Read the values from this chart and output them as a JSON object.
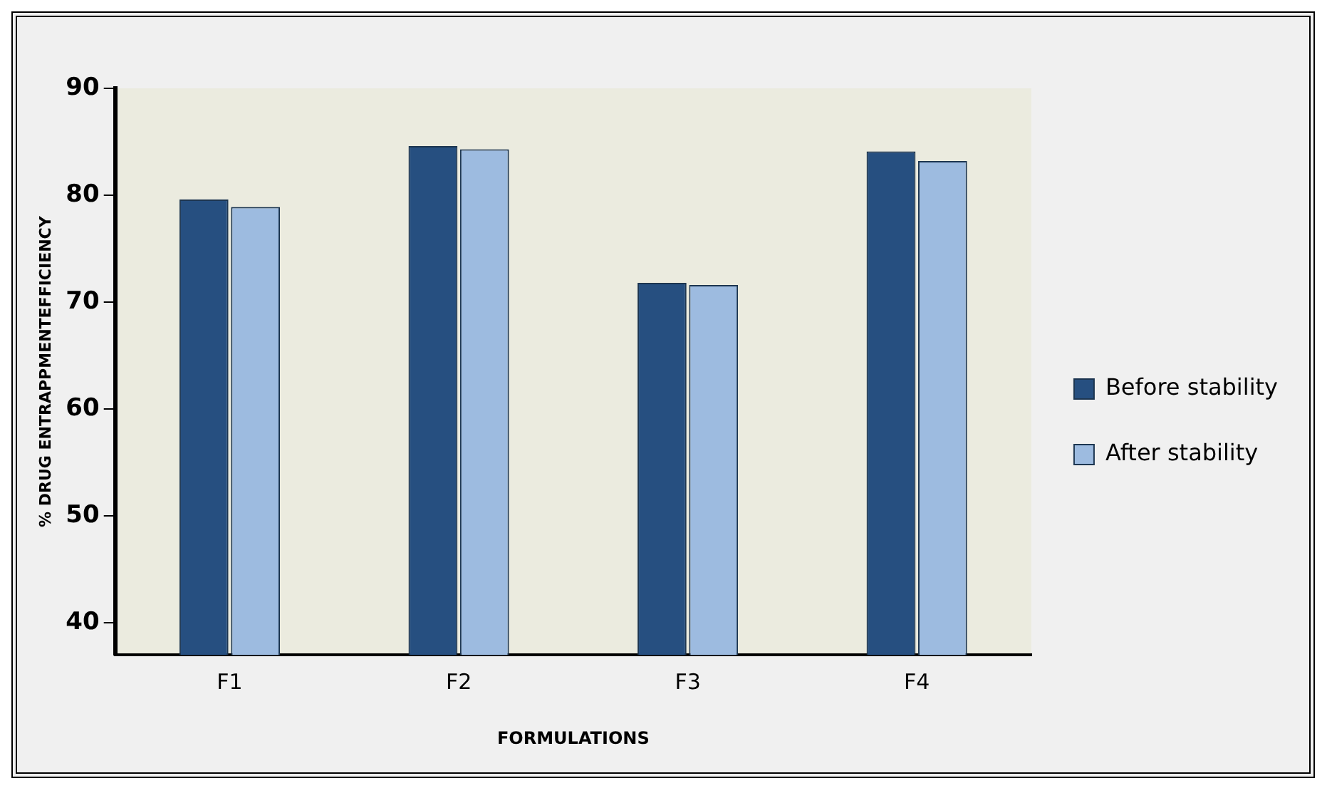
{
  "chart_data": {
    "type": "bar",
    "xlabel": "FORMULATIONS",
    "ylabel": "% DRUG ENTRAPPMENTEFFICIENCY",
    "categories": [
      "F1",
      "F2",
      "F3",
      "F4"
    ],
    "series": [
      {
        "name": "Before stability",
        "color": "#264f80",
        "values": [
          79.6,
          84.6,
          71.8,
          84.1
        ]
      },
      {
        "name": "After stability",
        "color": "#9dbbe0",
        "values": [
          78.9,
          84.3,
          71.6,
          83.2
        ]
      }
    ],
    "ylim": [
      37,
      90
    ],
    "yticks": [
      40,
      50,
      60,
      70,
      80,
      90
    ],
    "grid": false,
    "legend": "right"
  }
}
